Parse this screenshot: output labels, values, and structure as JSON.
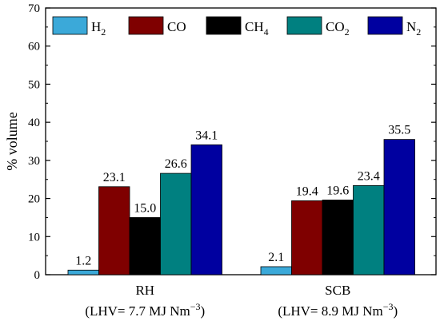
{
  "chart_data": {
    "type": "bar",
    "categories": [
      "RH",
      "SCB"
    ],
    "category_sublabels": [
      "(LHV= 7.7 MJ Nm",
      "(LHV= 8.9 MJ Nm"
    ],
    "category_sublabel_suffix": ")",
    "category_sublabel_sup": "−3",
    "series": [
      {
        "name": "H",
        "sub": "2",
        "color": "#3ba9d9",
        "values": [
          1.2,
          2.1
        ],
        "labels": [
          "1.2",
          "2.1"
        ]
      },
      {
        "name": "CO",
        "sub": "",
        "color": "#7f0000",
        "values": [
          23.1,
          19.4
        ],
        "labels": [
          "23.1",
          "19.4"
        ]
      },
      {
        "name": "CH",
        "sub": "4",
        "color": "#000000",
        "values": [
          15.0,
          19.6
        ],
        "labels": [
          "15.0",
          "19.6"
        ]
      },
      {
        "name": "CO",
        "sub": "2",
        "color": "#008080",
        "values": [
          26.6,
          23.4
        ],
        "labels": [
          "26.6",
          "23.4"
        ]
      },
      {
        "name": "N",
        "sub": "2",
        "color": "#0000a0",
        "values": [
          34.1,
          35.5
        ],
        "labels": [
          "34.1",
          "35.5"
        ]
      }
    ],
    "title": "",
    "xlabel": "",
    "ylabel": "% volume",
    "ylim": [
      0,
      70
    ],
    "yticks": [
      "0",
      "10",
      "20",
      "30",
      "40",
      "50",
      "60",
      "70"
    ],
    "grid": false,
    "legend_position": "top"
  }
}
